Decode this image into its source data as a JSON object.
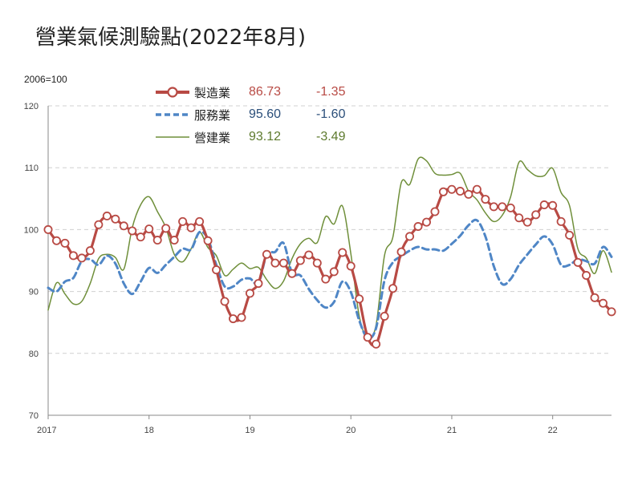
{
  "colors": {
    "manufacturing": "#b84a44",
    "services": "#4f86c6",
    "construction": "#6f8f3a",
    "grid": "#d0d0d0",
    "axis": "#888888"
  },
  "chart_data": {
    "type": "line",
    "title": "營業氣候測驗點(2022年8月)",
    "unit_label": "2006=100",
    "ylim": [
      70,
      120
    ],
    "yticks": [
      70,
      80,
      90,
      100,
      110,
      120
    ],
    "xlim": [
      2017.0,
      2022.583
    ],
    "xticks": [
      {
        "value": 2017,
        "label": "2017"
      },
      {
        "value": 2018,
        "label": "18"
      },
      {
        "value": 2019,
        "label": "19"
      },
      {
        "value": 2020,
        "label": "20"
      },
      {
        "value": 2021,
        "label": "21"
      },
      {
        "value": 2022,
        "label": "22"
      }
    ],
    "grid": "horizontal dashed",
    "legend_placement": "top-center",
    "x_start": 2017.0,
    "x_step": 0.08333,
    "series": [
      {
        "name": "製造業",
        "latest": "86.73",
        "change": "-1.35",
        "style": "line-with-circle-markers",
        "values": [
          100.0,
          98.2,
          97.8,
          95.8,
          95.4,
          96.6,
          100.8,
          102.2,
          101.7,
          100.6,
          99.8,
          98.8,
          100.1,
          98.3,
          100.2,
          98.3,
          101.3,
          100.3,
          101.3,
          98.2,
          93.5,
          88.4,
          85.6,
          85.8,
          89.7,
          91.3,
          96.0,
          94.6,
          94.6,
          92.9,
          95.0,
          95.9,
          94.6,
          92.0,
          93.2,
          96.3,
          94.1,
          88.8,
          82.6,
          81.5,
          86.0,
          90.5,
          96.4,
          98.9,
          100.5,
          101.2,
          102.9,
          106.1,
          106.5,
          106.2,
          105.7,
          106.5,
          104.9,
          103.7,
          103.7,
          103.5,
          101.9,
          101.2,
          102.4,
          104.0,
          103.9,
          101.3,
          99.1,
          94.7,
          92.6,
          89.0,
          88.1,
          86.73
        ]
      },
      {
        "name": "服務業",
        "latest": "95.60",
        "change": "-1.60",
        "style": "dashed",
        "values": [
          90.6,
          90.0,
          91.6,
          92.2,
          94.9,
          95.2,
          94.3,
          95.8,
          94.5,
          91.3,
          89.6,
          91.6,
          93.8,
          93.0,
          94.3,
          95.6,
          96.9,
          96.8,
          99.6,
          98.5,
          94.3,
          90.8,
          90.8,
          91.9,
          92.1,
          91.3,
          96.0,
          96.4,
          97.8,
          93.0,
          92.6,
          90.4,
          88.6,
          87.4,
          88.3,
          91.6,
          89.9,
          85.3,
          82.5,
          84.1,
          91.8,
          94.7,
          95.7,
          96.6,
          97.2,
          96.8,
          96.8,
          96.6,
          97.7,
          99.0,
          100.7,
          101.5,
          98.9,
          94.1,
          91.2,
          92.0,
          94.3,
          96.0,
          97.6,
          98.9,
          97.6,
          94.3,
          94.3,
          95.2,
          94.9,
          94.5,
          97.2,
          95.6
        ]
      },
      {
        "name": "營建業",
        "latest": "93.12",
        "change": "-3.49",
        "style": "thin-line",
        "values": [
          87.0,
          91.4,
          89.6,
          88.0,
          88.4,
          91.3,
          95.3,
          96.0,
          95.5,
          93.6,
          100.3,
          104.0,
          105.3,
          102.9,
          100.3,
          96.0,
          94.8,
          96.9,
          99.6,
          97.1,
          95.8,
          92.6,
          93.6,
          94.6,
          93.7,
          93.9,
          91.9,
          90.5,
          91.7,
          95.3,
          97.7,
          98.6,
          97.9,
          102.1,
          100.9,
          103.8,
          96.1,
          86.0,
          82.5,
          84.6,
          95.8,
          98.8,
          107.6,
          107.3,
          111.4,
          111.1,
          109.1,
          108.8,
          108.9,
          109.1,
          106.2,
          104.8,
          102.7,
          101.3,
          102.3,
          105.3,
          110.9,
          109.7,
          108.7,
          108.7,
          109.9,
          106.0,
          103.9,
          96.9,
          95.4,
          92.9,
          96.6,
          93.12
        ]
      }
    ]
  }
}
